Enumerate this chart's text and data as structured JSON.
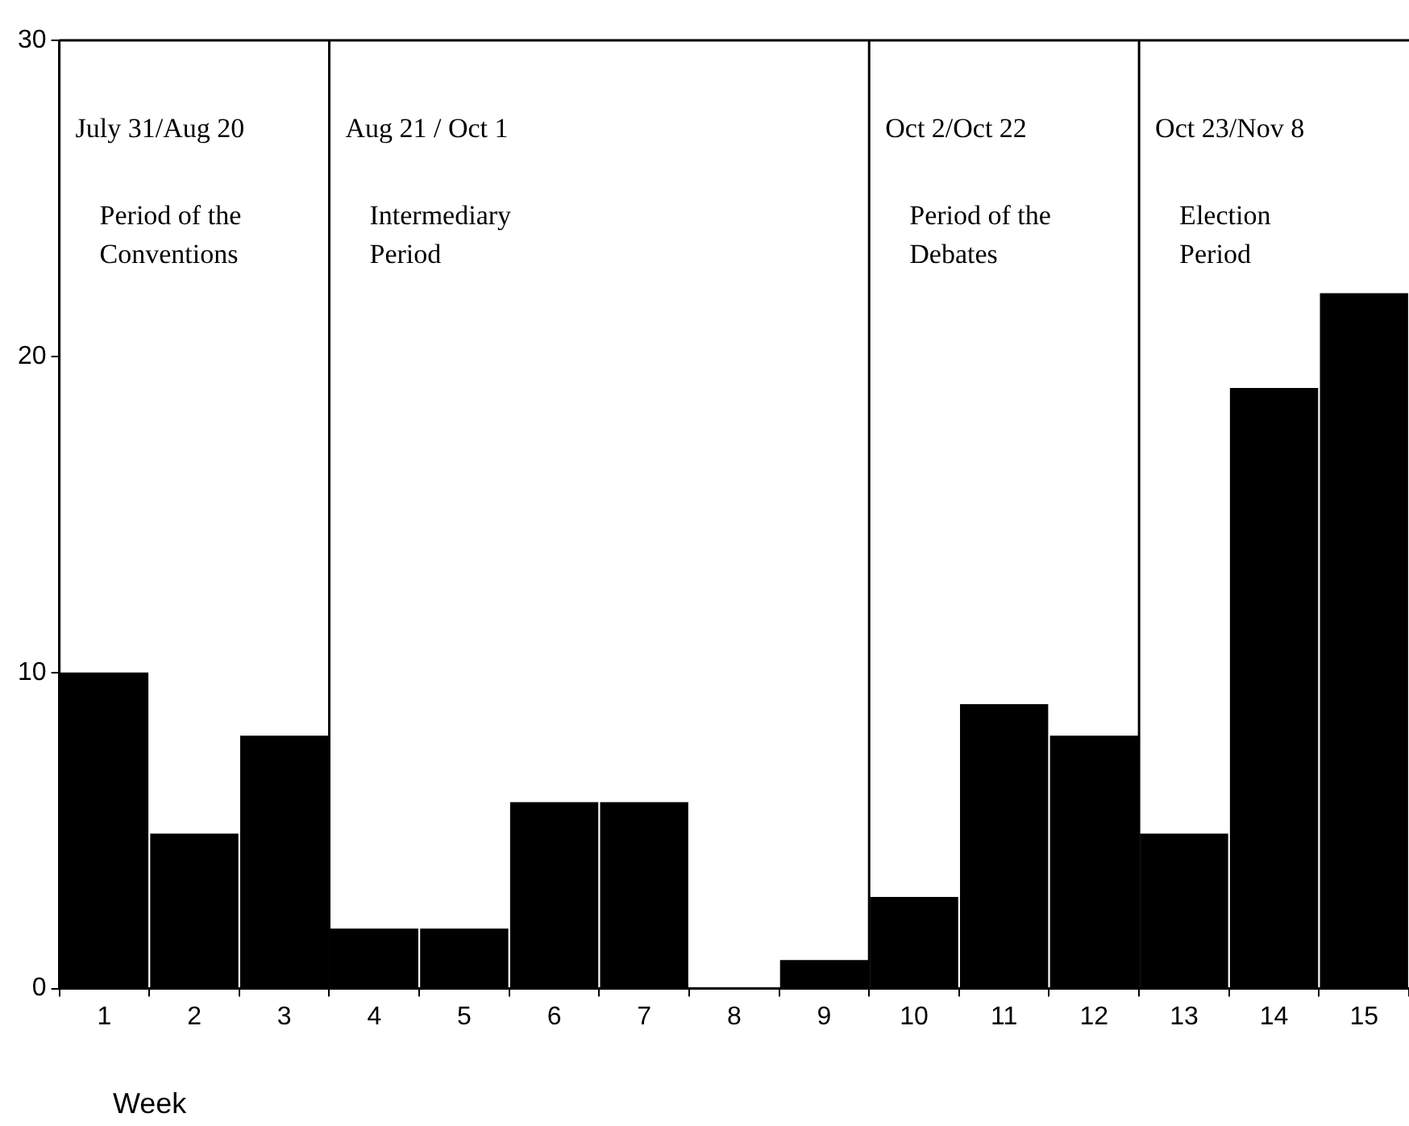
{
  "chart_data": {
    "type": "bar",
    "xlabel": "Week",
    "x": [
      1,
      2,
      3,
      4,
      5,
      6,
      7,
      8,
      9,
      10,
      11,
      12,
      13,
      14,
      15
    ],
    "values": [
      10,
      4.9,
      8,
      1.9,
      1.9,
      5.9,
      5.9,
      0,
      0.9,
      2.9,
      9,
      8,
      4.9,
      19,
      22
    ],
    "color": "#000000",
    "xlim": [
      0.5,
      15.5
    ],
    "xticks": [
      1,
      2,
      3,
      4,
      5,
      6,
      7,
      8,
      9,
      10,
      11,
      12,
      13,
      14,
      15
    ],
    "ylim": [
      0,
      30
    ],
    "yticks": [
      0,
      10,
      20,
      30
    ],
    "grid": false,
    "legend": false,
    "ref_lines": [
      {
        "axis": "x",
        "value": 0.5,
        "label": "July 31/Aug 20"
      },
      {
        "axis": "x",
        "value": 3.5,
        "label": "Aug 21 / Oct 1"
      },
      {
        "axis": "x",
        "value": 9.5,
        "label": "Oct 2/Oct 22"
      },
      {
        "axis": "x",
        "value": 12.5,
        "label": "Oct 23/Nov 8"
      }
    ],
    "annotations": [
      "Period of the Conventions",
      "Intermediary Period",
      "Period of the Debates",
      "Election Period"
    ]
  }
}
